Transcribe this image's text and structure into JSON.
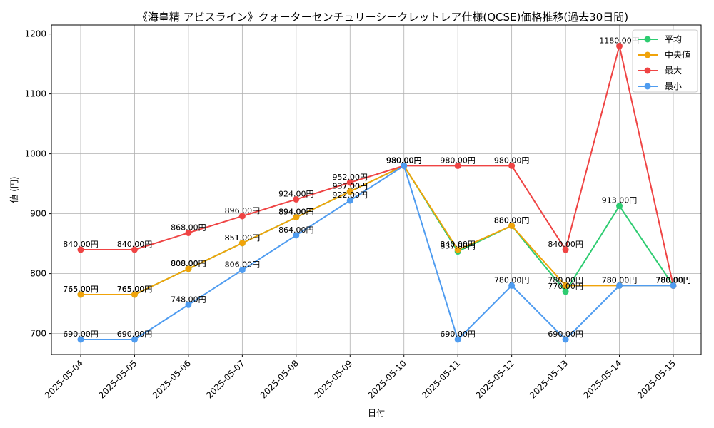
{
  "chart_data": {
    "type": "line",
    "title": "《海皇精 アビスライン》クォーターセンチュリーシークレットレア仕様(QCSE)価格推移(過去30日間)",
    "xlabel": "日付",
    "ylabel": "値 (円)",
    "ylim": [
      665,
      1215
    ],
    "yticks": [
      700,
      800,
      900,
      1000,
      1100,
      1200
    ],
    "grid": true,
    "legend_position": "top-right",
    "value_suffix": "円",
    "categories": [
      "2025-05-04",
      "2025-05-05",
      "2025-05-06",
      "2025-05-07",
      "2025-05-08",
      "2025-05-09",
      "2025-05-10",
      "2025-05-11",
      "2025-05-12",
      "2025-05-13",
      "2025-05-14",
      "2025-05-15"
    ],
    "series": [
      {
        "name": "平均",
        "color": "#2ecc71",
        "values": [
          765,
          765,
          808,
          851,
          894,
          937,
          980,
          837,
          880,
          770,
          913,
          780
        ]
      },
      {
        "name": "中央値",
        "color": "#f0a30a",
        "values": [
          765,
          765,
          808,
          851,
          894,
          937,
          980,
          840,
          880,
          780,
          780,
          780
        ]
      },
      {
        "name": "最大",
        "color": "#ef4444",
        "values": [
          840,
          840,
          868,
          896,
          924,
          952,
          980,
          980,
          980,
          840,
          1180,
          780
        ]
      },
      {
        "name": "最小",
        "color": "#4f9cf0",
        "values": [
          690,
          690,
          748,
          806,
          864,
          922,
          980,
          690,
          780,
          690,
          780,
          780
        ]
      }
    ]
  }
}
